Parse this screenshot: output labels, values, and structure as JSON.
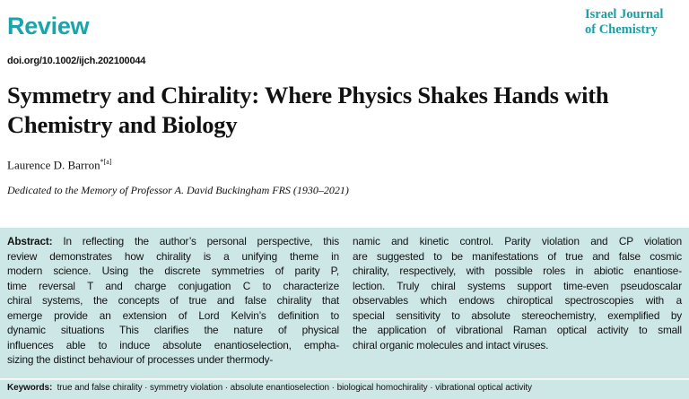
{
  "header": {
    "section_label": "Review",
    "journal_line1": "Israel Journal",
    "journal_line2": "of Chemistry",
    "doi": "doi.org/10.1002/ijch.202100044"
  },
  "article": {
    "title": "Symmetry and Chirality: Where Physics Shakes Hands with Chemistry and Biology",
    "author": "Laurence D. Barron",
    "author_mark": "*[a]",
    "dedication": "Dedicated to the Memory of Professor A. David Buckingham FRS (1930–2021)"
  },
  "abstract": {
    "label": "Abstract:",
    "left_lines": [
      "In reflecting the author’s personal perspective, this",
      "review demonstrates how chirality is a unifying theme in",
      "modern science. Using the discrete symmetries of parity P,",
      "time reversal T and charge conjugation C to characterize",
      "chiral systems, the concepts of true and false chirality that",
      "emerge provide an extension of Lord Kelvin’s definition to",
      "dynamic situations This clarifies the nature of physical",
      "influences able to induce absolute enantioselection, empha-",
      "sizing the distinct behaviour of processes under thermody-"
    ],
    "right_lines": [
      "namic and kinetic control. Parity violation and CP violation",
      "are suggested to be manifestations of true and false cosmic",
      "chirality, respectively, with possible roles in abiotic enantiose-",
      "lection. Truly chiral systems support time-even pseudoscalar",
      "observables which endows chiroptical spectroscopies with a",
      "special sensitivity to absolute stereochemistry, exemplified by",
      "the application of vibrational Raman optical activity to small",
      "chiral organic molecules and intact viruses."
    ]
  },
  "keywords": {
    "label": "Keywords:",
    "text": "true and false chirality · symmetry violation · absolute enantioselection · biological homochirality · vibrational optical activity"
  },
  "colors": {
    "accent": "#19a5ab",
    "abstract_bg": "#cde6e6"
  }
}
